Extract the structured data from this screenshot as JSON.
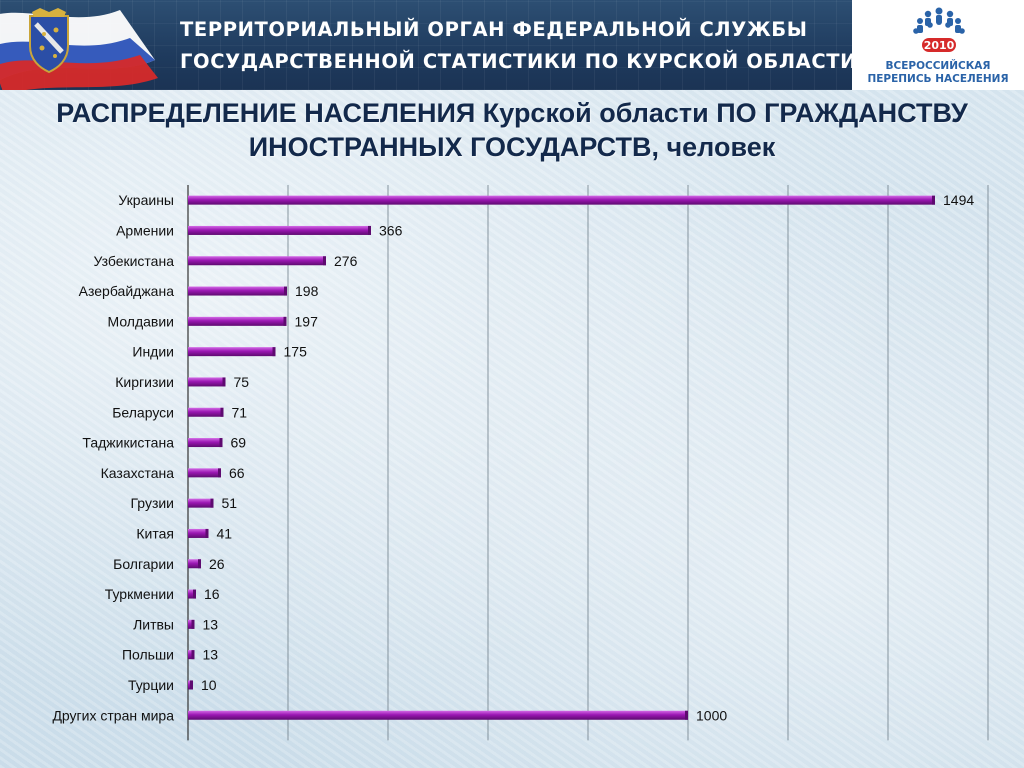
{
  "header": {
    "org_line_1": "ТЕРРИТОРИАЛЬНЫЙ ОРГАН ФЕДЕРАЛЬНОЙ СЛУЖБЫ",
    "org_line_2": "ГОСУДАРСТВЕННОЙ СТАТИСТИКИ ПО КУРСКОЙ ОБЛАСТИ",
    "emblem_icon": "kursk-coat-of-arms-icon",
    "flag_icon": "russian-flag-icon"
  },
  "census_logo": {
    "year": "2010",
    "line_1": "ВСЕРОССИЙСКАЯ",
    "line_2": "ПЕРЕПИСЬ НАСЕЛЕНИЯ",
    "icon": "census-people-circle-icon"
  },
  "title": {
    "line_1": "РАСПРЕДЕЛЕНИЕ НАСЕЛЕНИЯ Курской области ПО ГРАЖДАНСТВУ",
    "line_2": "ИНОСТРАННЫХ ГОСУДАРСТВ, человек"
  },
  "colors": {
    "bar": "#9b17b3",
    "bar_dark": "#5e0a70",
    "header_bg": "#1f3b5e",
    "title": "#13294b",
    "census_blue": "#2a63a8"
  },
  "chart_data": {
    "type": "bar",
    "orientation": "horizontal",
    "title": "",
    "xlabel": "",
    "ylabel": "",
    "xlim": [
      0,
      1600
    ],
    "grid": true,
    "legend": "none",
    "categories": [
      "Украины",
      "Армении",
      "Узбекистана",
      "Азербайджана",
      "Молдавии",
      "Индии",
      "Киргизии",
      "Беларуси",
      "Таджикистана",
      "Казахстана",
      "Грузии",
      "Китая",
      "Болгарии",
      "Туркмении",
      "Литвы",
      "Польши",
      "Турции",
      "Других стран мира"
    ],
    "values": [
      1494,
      366,
      276,
      198,
      197,
      175,
      75,
      71,
      69,
      66,
      51,
      41,
      26,
      16,
      13,
      13,
      10,
      1000
    ]
  }
}
